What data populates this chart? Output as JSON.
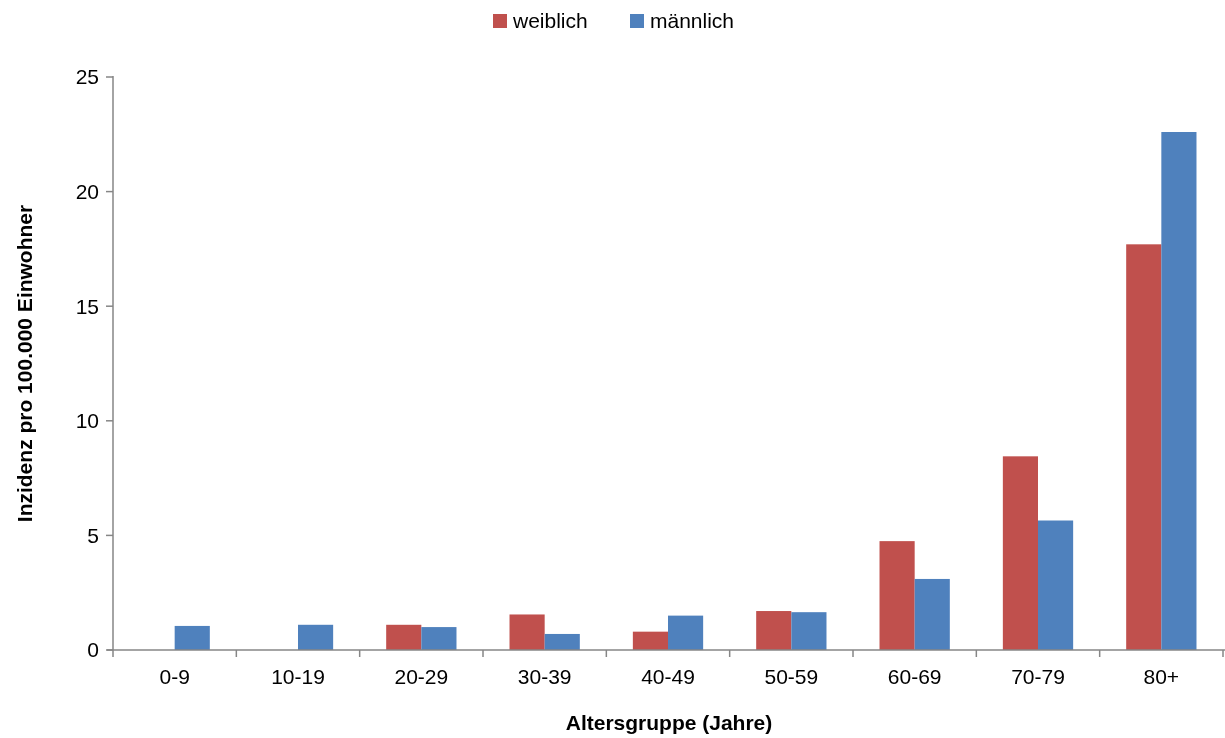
{
  "chart_data": {
    "type": "bar",
    "xlabel": "Altersgruppe (Jahre)",
    "ylabel": "Inzidenz pro 100.000 Einwohner",
    "categories": [
      "0-9",
      "10-19",
      "20-29",
      "30-39",
      "40-49",
      "50-59",
      "60-69",
      "70-79",
      "80+"
    ],
    "series": [
      {
        "name": "weiblich",
        "color": "#c0504d",
        "values": [
          0,
          0,
          1.1,
          1.55,
          0.8,
          1.7,
          4.75,
          8.45,
          17.7
        ]
      },
      {
        "name": "männlich",
        "color": "#4f81bd",
        "values": [
          1.05,
          1.1,
          1.0,
          0.7,
          1.5,
          1.65,
          3.1,
          5.65,
          22.6
        ]
      }
    ],
    "ylim": [
      0,
      25
    ],
    "yticks": [
      0,
      5,
      10,
      15,
      20,
      25
    ],
    "grid": false,
    "legend": "top"
  }
}
